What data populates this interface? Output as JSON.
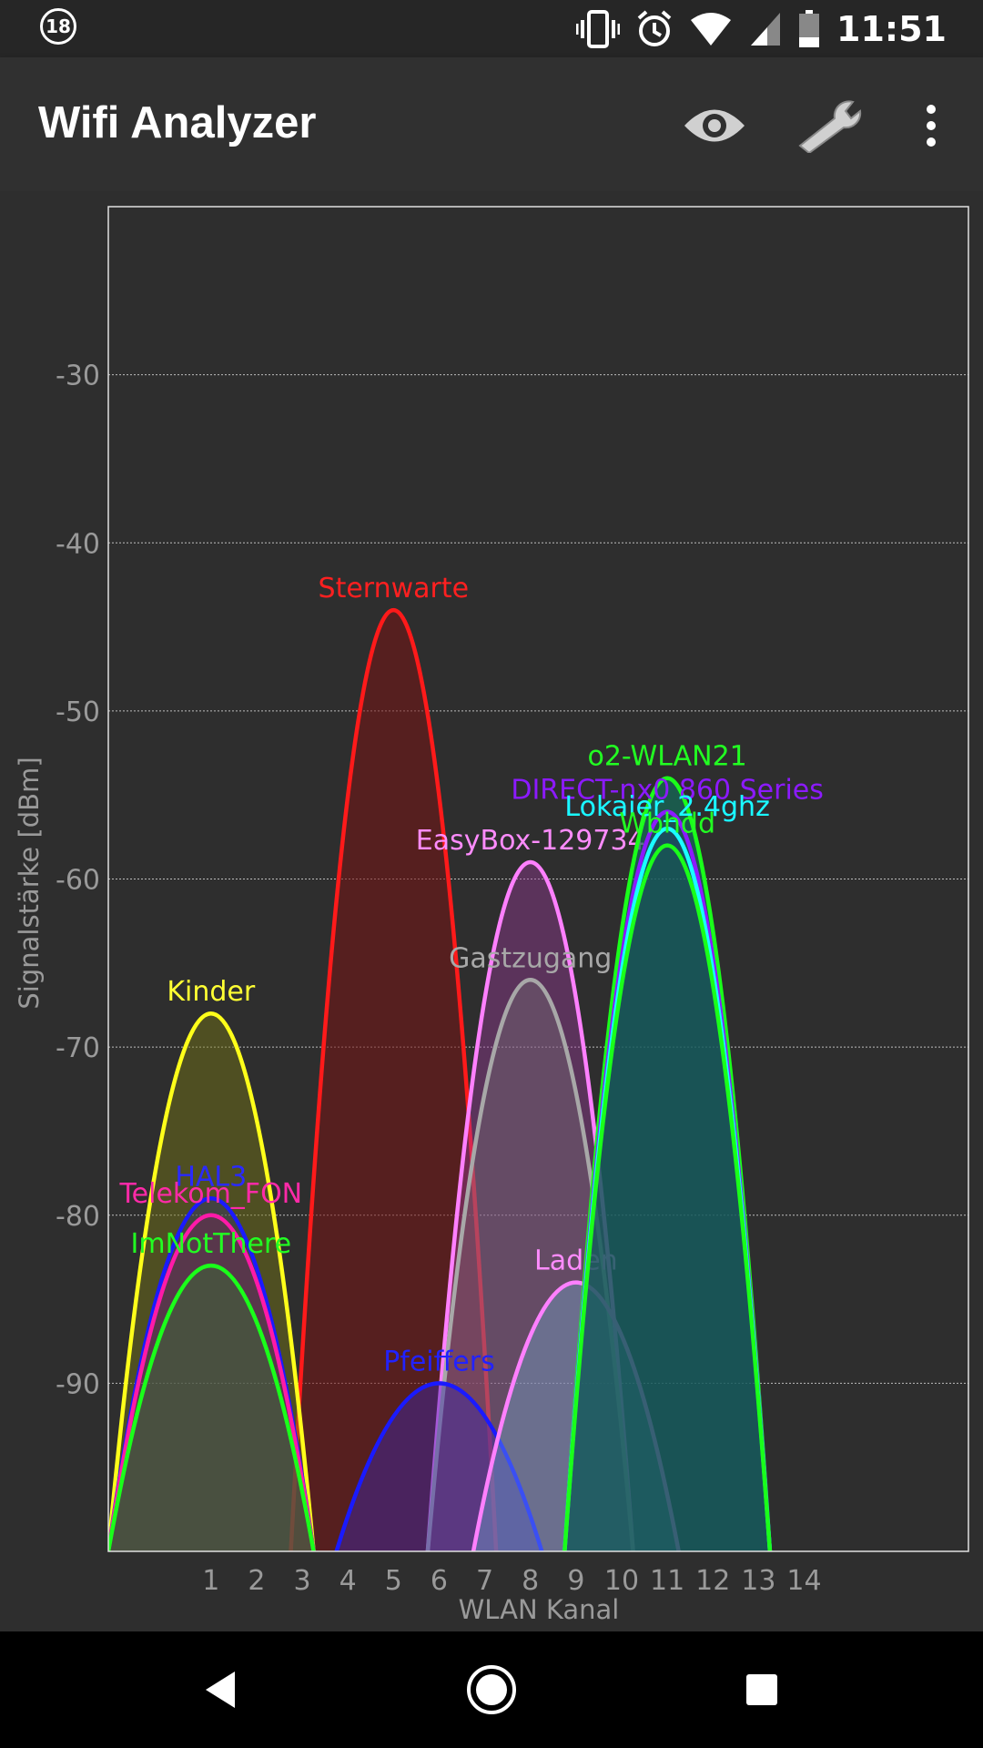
{
  "status_bar": {
    "badge": "18",
    "time": "11:51",
    "icons": [
      "vibrate-icon",
      "alarm-icon",
      "wifi-icon",
      "cell-signal-icon",
      "battery-icon"
    ]
  },
  "app_bar": {
    "title": "Wifi Analyzer",
    "actions": [
      "eye-icon",
      "wrench-icon",
      "more-vert-icon"
    ]
  },
  "nav_bar": {
    "buttons": [
      "back-icon",
      "home-icon",
      "recents-icon"
    ]
  },
  "chart_data": {
    "type": "area",
    "xlabel": "WLAN Kanal",
    "ylabel": "Signalstärke [dBm]",
    "x_ticks": [
      "1",
      "2",
      "3",
      "4",
      "5",
      "6",
      "7",
      "8",
      "9",
      "10",
      "11",
      "12",
      "13",
      "14"
    ],
    "y_ticks": [
      "-30",
      "-40",
      "-50",
      "-60",
      "-70",
      "-80",
      "-90"
    ],
    "xlim": [
      -1.25,
      17.6
    ],
    "ylim": [
      -100,
      -20
    ],
    "grid": true,
    "series": [
      {
        "name": "Sternwarte",
        "channel": 5,
        "dbm": -44,
        "color": "#ff1a1a",
        "fill": "rgba(120,20,20,0.55)",
        "label_color": "#ff2020"
      },
      {
        "name": "Kinder",
        "channel": 1,
        "dbm": -68,
        "color": "#ffff1a",
        "fill": "rgba(120,120,20,0.45)",
        "label_color": "#ffff33"
      },
      {
        "name": "HAL3",
        "channel": 1,
        "dbm": -79,
        "color": "#1a1aff",
        "fill": "rgba(40,40,140,0.30)",
        "label_color": "#2a2aff"
      },
      {
        "name": "Telekom_FON",
        "channel": 1,
        "dbm": -80,
        "color": "#ff1aa8",
        "fill": "rgba(140,30,100,0.30)",
        "label_color": "#ff2aa8"
      },
      {
        "name": "ImNotThere",
        "channel": 1,
        "dbm": -83,
        "color": "#1aff1a",
        "fill": "rgba(40,140,40,0.30)",
        "label_color": "#22ff22"
      },
      {
        "name": "EasyBox-129734",
        "channel": 8,
        "dbm": -59,
        "color": "#ff80ff",
        "fill": "rgba(160,60,160,0.40)",
        "label_color": "#ff8cff"
      },
      {
        "name": "Gastzugang",
        "channel": 8,
        "dbm": -66,
        "color": "#a8a8a8",
        "fill": "rgba(120,120,120,0.35)",
        "label_color": "#a8a8a8"
      },
      {
        "name": "Pfeiffers",
        "channel": 6,
        "dbm": -90,
        "color": "#1a1aff",
        "fill": "rgba(60,40,170,0.45)",
        "label_color": "#2222ff"
      },
      {
        "name": "Laden",
        "channel": 9,
        "dbm": -84,
        "color": "#ff80ff",
        "fill": "rgba(120,180,220,0.35)",
        "label_color": "#ff8cff"
      },
      {
        "name": "o2-WLAN21",
        "channel": 11,
        "dbm": -54,
        "color": "#1aff1a",
        "fill": "rgba(20,110,90,0.70)",
        "label_color": "#22ff22"
      },
      {
        "name": "DIRECT-nx0 860 Series",
        "channel": 11,
        "dbm": -56,
        "color": "#8c1aff",
        "fill": "rgba(60,20,120,0.15)",
        "label_color": "#8c1aff"
      },
      {
        "name": "Lokaier_2.4ghz",
        "channel": 11,
        "dbm": -57,
        "color": "#1a1aff",
        "fill": "rgba(20,20,120,0.15)",
        "label_color": "#2a2aff"
      },
      {
        "name": "Lokaier_2.4ghz",
        "channel": 11,
        "dbm": -57,
        "color": "#1affff",
        "fill": "rgba(20,120,120,0.15)",
        "label_color": "#1affff"
      },
      {
        "name": "Wbhdd",
        "channel": 11,
        "dbm": -58,
        "color": "#1aff1a",
        "fill": "rgba(20,110,60,0.20)",
        "label_color": "#22ff22"
      }
    ]
  }
}
